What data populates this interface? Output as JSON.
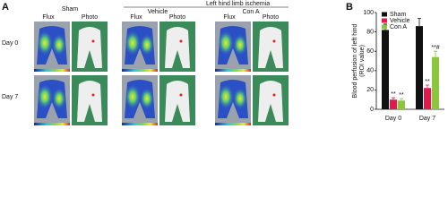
{
  "panel_a": {
    "label": "A",
    "groups": [
      "Sham",
      "Vehicle",
      "Con A"
    ],
    "ischemia_title": "Left hind limb ischemia",
    "columns": [
      "Flux",
      "Photo",
      "Flux",
      "Photo",
      "Flux",
      "Photo"
    ],
    "rows": [
      "Day 0",
      "Day 7"
    ]
  },
  "chart_data": {
    "type": "bar",
    "panel_label": "B",
    "ylabel": [
      "Blood perfusion of left hind",
      "(ROI value)"
    ],
    "categories": [
      "Day 0",
      "Day 7"
    ],
    "ylim": [
      0,
      100
    ],
    "yticks": [
      0,
      20,
      40,
      60,
      80,
      100
    ],
    "legend": "top-left",
    "series": [
      {
        "name": "Sham",
        "color": "#111111",
        "values": [
          82,
          86
        ],
        "errors": [
          6,
          8
        ]
      },
      {
        "name": "Vehicle",
        "color": "#e8174a",
        "values": [
          10,
          22
        ],
        "errors": [
          2,
          3
        ],
        "annotations": [
          "**",
          "**"
        ]
      },
      {
        "name": "Con A",
        "color": "#8cc63f",
        "values": [
          9,
          54
        ],
        "errors": [
          2,
          6
        ],
        "annotations": [
          "**",
          "**#"
        ]
      }
    ]
  }
}
